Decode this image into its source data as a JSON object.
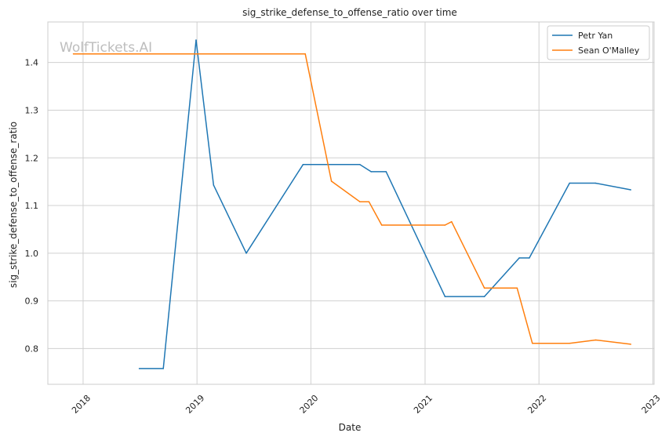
{
  "chart_data": {
    "type": "line",
    "title": "sig_strike_defense_to_offense_ratio over time",
    "xlabel": "Date",
    "ylabel": "sig_strike_defense_to_offense_ratio",
    "watermark": "WolfTickets.AI",
    "xlim": [
      "2017-09-10",
      "2023-01-05"
    ],
    "ylim": [
      0.725,
      1.485
    ],
    "x_ticks": [
      "2018",
      "2019",
      "2020",
      "2021",
      "2022",
      "2023"
    ],
    "y_ticks": [
      "0.8",
      "0.9",
      "1.0",
      "1.1",
      "1.2",
      "1.3",
      "1.4"
    ],
    "grid": true,
    "legend_position": "top-right",
    "series": [
      {
        "name": "Petr Yan",
        "color": "#1f77b4",
        "x": [
          "2018-06-30",
          "2018-09-15",
          "2018-12-29",
          "2019-02-23",
          "2019-06-08",
          "2019-12-07",
          "2020-06-06",
          "2020-07-12",
          "2020-08-29",
          "2021-03-06",
          "2021-07-10",
          "2021-10-30",
          "2021-12-01",
          "2022-04-09",
          "2022-07-01",
          "2022-10-22"
        ],
        "y": [
          0.758,
          0.758,
          1.447,
          1.143,
          1.0,
          1.186,
          1.186,
          1.171,
          1.171,
          0.909,
          0.909,
          0.99,
          0.99,
          1.147,
          1.147,
          1.133
        ]
      },
      {
        "name": "Sean O'Malley",
        "color": "#ff7f0e",
        "x": [
          "2017-12-01",
          "2019-12-14",
          "2020-03-07",
          "2020-06-06",
          "2020-07-05",
          "2020-08-15",
          "2021-03-06",
          "2021-03-27",
          "2021-07-10",
          "2021-10-23",
          "2021-12-11",
          "2022-04-09",
          "2022-07-02",
          "2022-10-22"
        ],
        "y": [
          1.418,
          1.418,
          1.151,
          1.108,
          1.108,
          1.059,
          1.059,
          1.066,
          0.927,
          0.927,
          0.811,
          0.811,
          0.818,
          0.809
        ]
      }
    ]
  }
}
